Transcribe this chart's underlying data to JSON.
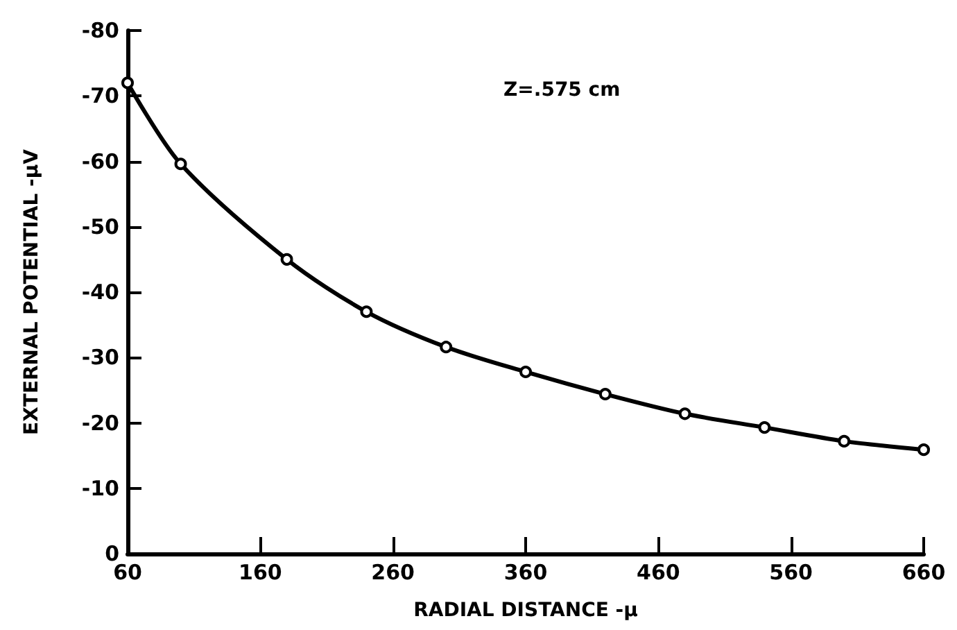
{
  "chart_data": {
    "type": "line",
    "xlabel": "RADIAL DISTANCE -μ",
    "ylabel": "EXTERNAL POTENTIAL -μV",
    "annotations": [
      "Z=.575 cm"
    ],
    "series": [
      {
        "color": "#000000",
        "x": [
          60,
          100,
          180,
          240,
          300,
          360,
          420,
          480,
          540,
          600,
          660
        ],
        "values": [
          -72,
          -59.6,
          -45,
          -37,
          -31.6,
          -27.8,
          -24.4,
          -21.4,
          -19.3,
          -17.2,
          -15.9
        ]
      }
    ],
    "xlim": [
      60,
      660
    ],
    "xticks": [
      60,
      160,
      260,
      360,
      460,
      560,
      660
    ],
    "ylim": [
      0,
      -80
    ],
    "yticks": [
      0,
      -10,
      -20,
      -30,
      -40,
      -50,
      -60,
      -70,
      -80
    ],
    "grid": false,
    "marker": "circle",
    "line_style": "solid"
  }
}
